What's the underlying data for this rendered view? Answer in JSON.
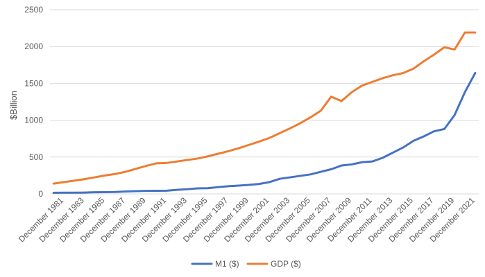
{
  "chart_data": {
    "type": "line",
    "title": "",
    "xlabel": "",
    "ylabel": "$Billion",
    "ylim": [
      0,
      2500
    ],
    "yticks": [
      0,
      500,
      1000,
      1500,
      2000,
      2500
    ],
    "grid": true,
    "legend_position": "bottom",
    "x": [
      1980,
      1981,
      1982,
      1983,
      1984,
      1985,
      1986,
      1987,
      1988,
      1989,
      1990,
      1991,
      1992,
      1993,
      1994,
      1995,
      1996,
      1997,
      1998,
      1999,
      2000,
      2001,
      2002,
      2003,
      2004,
      2005,
      2006,
      2007,
      2008,
      2009,
      2010,
      2011,
      2012,
      2013,
      2014,
      2015,
      2016,
      2017,
      2018,
      2019,
      2020,
      2021
    ],
    "xtick_labels": [
      {
        "x": 1981,
        "label": "December 1981"
      },
      {
        "x": 1983,
        "label": "December 1983"
      },
      {
        "x": 1985,
        "label": "December 1985"
      },
      {
        "x": 1987,
        "label": "December 1987"
      },
      {
        "x": 1989,
        "label": "December 1989"
      },
      {
        "x": 1991,
        "label": "December 1991"
      },
      {
        "x": 1993,
        "label": "December 1993"
      },
      {
        "x": 1995,
        "label": "December 1995"
      },
      {
        "x": 1997,
        "label": "December 1997"
      },
      {
        "x": 1999,
        "label": "December 1999"
      },
      {
        "x": 2001,
        "label": "December 2001"
      },
      {
        "x": 2003,
        "label": "December 2003"
      },
      {
        "x": 2005,
        "label": "December 2005"
      },
      {
        "x": 2007,
        "label": "December 2007"
      },
      {
        "x": 2009,
        "label": "December 2009"
      },
      {
        "x": 2011,
        "label": "December 2011"
      },
      {
        "x": 2013,
        "label": "December 2013"
      },
      {
        "x": 2015,
        "label": "December 2015"
      },
      {
        "x": 2017,
        "label": "December 2017"
      },
      {
        "x": 2019,
        "label": "December 2019"
      },
      {
        "x": 2021,
        "label": "December 2021"
      }
    ],
    "series": [
      {
        "name": "M1 ($)",
        "color": "#4472C4",
        "values": [
          15,
          16,
          17,
          18,
          22,
          24,
          26,
          33,
          38,
          41,
          42,
          44,
          55,
          63,
          75,
          78,
          92,
          104,
          113,
          122,
          135,
          160,
          205,
          225,
          245,
          265,
          300,
          335,
          385,
          400,
          430,
          440,
          490,
          560,
          630,
          720,
          780,
          850,
          880,
          1070,
          1380,
          1640
        ]
      },
      {
        "name": "GDP ($)",
        "color": "#ED7D31",
        "values": [
          140,
          160,
          180,
          200,
          225,
          250,
          270,
          300,
          340,
          380,
          415,
          420,
          440,
          460,
          480,
          510,
          545,
          580,
          620,
          665,
          710,
          760,
          825,
          890,
          960,
          1040,
          1130,
          1320,
          1260,
          1380,
          1470,
          1520,
          1570,
          1610,
          1640,
          1700,
          1800,
          1890,
          1990,
          1960,
          2190,
          2190
        ]
      }
    ]
  }
}
